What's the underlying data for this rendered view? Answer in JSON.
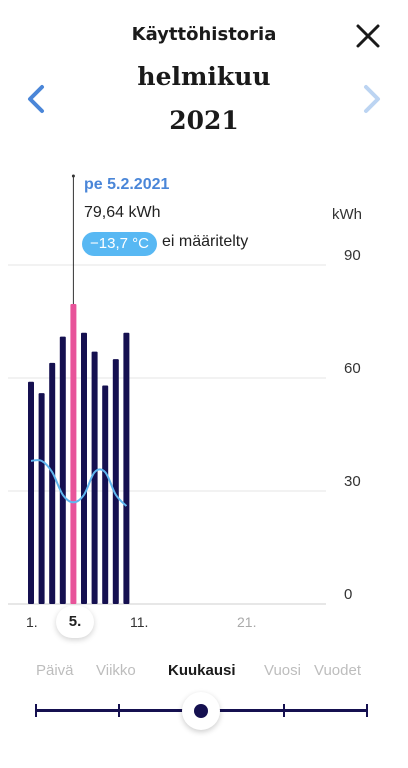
{
  "header": {
    "title": "Käyttöhistoria",
    "month": "helmikuu",
    "year": "2021"
  },
  "tooltip": {
    "date": "pe 5.2.2021",
    "consumption": "79,64 kWh",
    "temperature": "−13,7 °C",
    "temperature_note": "ei määritelty"
  },
  "chart_data": {
    "type": "bar",
    "ylabel": "kWh",
    "ylim": [
      0,
      90
    ],
    "yticks": [
      "90",
      "60",
      "30",
      "0"
    ],
    "xticks": [
      "1.",
      "5.",
      "11.",
      "21."
    ],
    "days": [
      1,
      2,
      3,
      4,
      5,
      6,
      7,
      8,
      9,
      10
    ],
    "values": [
      59,
      56,
      64,
      71,
      79.64,
      72,
      67,
      58,
      65,
      72
    ],
    "selected_day": 5,
    "temperature_line": [
      38,
      38,
      35,
      29,
      27,
      29,
      35,
      35,
      29,
      26
    ],
    "colors": {
      "bar": "#151050",
      "selected_bar": "#e8549a",
      "temperature": "#5fb6ef",
      "grid": "#e4e4e4"
    }
  },
  "periods": {
    "items": [
      "Päivä",
      "Viikko",
      "Kuukausi",
      "Vuosi",
      "Vuodet"
    ],
    "selected": "Kuukausi"
  }
}
